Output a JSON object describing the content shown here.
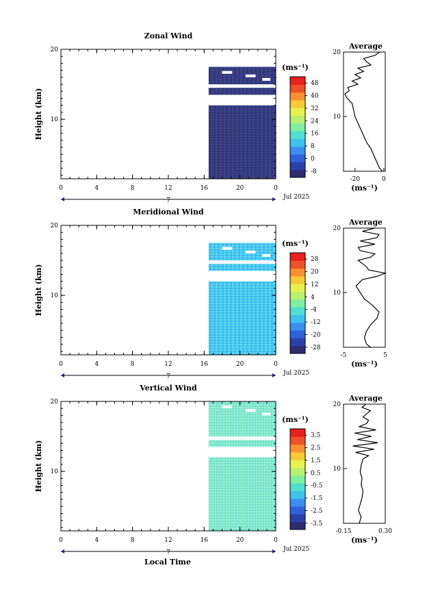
{
  "figure": {
    "xlabel": "Local Time",
    "date_label": "Jul 2025",
    "day_marker": "7",
    "unit_label": "(ms⁻¹)",
    "average_title": "Average"
  },
  "chart_data": [
    {
      "type": "heatmap",
      "title": "Zonal Wind",
      "xlabel": "Local Time",
      "ylabel": "Height (km)",
      "x_ticks": [
        "0",
        "4",
        "8",
        "12",
        "16",
        "20",
        "0"
      ],
      "xlim": [
        0,
        24
      ],
      "y_ticks": [
        "10",
        "20"
      ],
      "ylim": [
        1.5,
        20
      ],
      "data_x_range": [
        16.5,
        24
      ],
      "data_height_bands_km": [
        [
          1.5,
          12
        ],
        [
          13.5,
          14.5
        ],
        [
          15,
          17.5
        ]
      ],
      "colorbar": {
        "label": "(ms⁻¹)",
        "ticks": [
          "48",
          "40",
          "32",
          "24",
          "16",
          "8",
          "0",
          "-8"
        ],
        "range": [
          -12,
          52
        ]
      },
      "average": {
        "title": "Average",
        "xlabel": "(ms⁻¹)",
        "x_ticks": [
          "-20",
          "0"
        ],
        "xlim": [
          -28,
          1
        ],
        "y_ticks": [
          "10",
          "20"
        ],
        "height_km": [
          1.5,
          2,
          3,
          4,
          5,
          6,
          7,
          8,
          9,
          10,
          11,
          12,
          12.5,
          13,
          13.5,
          14,
          14.5,
          15,
          15.5,
          16,
          16.5,
          17,
          17.5,
          18,
          18.5,
          19,
          19.5,
          20
        ],
        "values": [
          -1,
          -3,
          -5,
          -7,
          -9,
          -12,
          -14,
          -16,
          -18,
          -20,
          -21,
          -22,
          -24,
          -26,
          -27,
          -24,
          -25,
          -18,
          -22,
          -16,
          -20,
          -14,
          -18,
          -9,
          -12,
          -14,
          -6,
          -3
        ]
      }
    },
    {
      "type": "heatmap",
      "title": "Meridional Wind",
      "xlabel": "Local Time",
      "ylabel": "Height (km)",
      "x_ticks": [
        "0",
        "4",
        "8",
        "12",
        "16",
        "20",
        "0"
      ],
      "xlim": [
        0,
        24
      ],
      "y_ticks": [
        "10",
        "20"
      ],
      "ylim": [
        1.5,
        20
      ],
      "data_x_range": [
        16.5,
        24
      ],
      "data_height_bands_km": [
        [
          1.5,
          12
        ],
        [
          13.5,
          14.5
        ],
        [
          15,
          17.5
        ]
      ],
      "colorbar": {
        "label": "(ms⁻¹)",
        "ticks": [
          "28",
          "20",
          "12",
          "4",
          "-4",
          "-12",
          "-20",
          "-28"
        ],
        "range": [
          -32,
          32
        ]
      },
      "average": {
        "title": "Average",
        "xlabel": "(ms⁻¹)",
        "x_ticks": [
          "-5",
          "5"
        ],
        "xlim": [
          -5,
          5
        ],
        "y_ticks": [
          "10",
          "20"
        ],
        "height_km": [
          1.5,
          2,
          3,
          4,
          5,
          6,
          7,
          8,
          9,
          10,
          11,
          12,
          12.5,
          13,
          13.5,
          14,
          14.5,
          15,
          15.5,
          16,
          16.5,
          17,
          17.5,
          18,
          18.5,
          19,
          19.5,
          20
        ],
        "values": [
          1.5,
          0.5,
          0,
          0.5,
          1.5,
          3,
          3.5,
          2,
          0,
          -1,
          -2,
          -0.5,
          3,
          5,
          1,
          0.5,
          -0.5,
          -1.5,
          1.5,
          2.5,
          -1,
          -1.5,
          2.5,
          -1,
          3,
          3.5,
          -0.5,
          2.5
        ]
      }
    },
    {
      "type": "heatmap",
      "title": "Vertical Wind",
      "xlabel": "Local Time",
      "ylabel": "Height (km)",
      "x_ticks": [
        "0",
        "4",
        "8",
        "12",
        "16",
        "20",
        "0"
      ],
      "xlim": [
        0,
        24
      ],
      "y_ticks": [
        "10",
        "20"
      ],
      "ylim": [
        1.5,
        20
      ],
      "data_x_range": [
        16.5,
        24
      ],
      "data_height_bands_km": [
        [
          1.5,
          12
        ],
        [
          13.5,
          14.5
        ],
        [
          15,
          20
        ]
      ],
      "colorbar": {
        "label": "(ms⁻¹)",
        "ticks": [
          "3.5",
          "2.5",
          "1.5",
          "0.5",
          "-0.5",
          "-1.5",
          "-2.5",
          "-3.5"
        ],
        "range": [
          -4,
          4
        ]
      },
      "average": {
        "title": "Average",
        "xlabel": "(ms⁻¹)",
        "x_ticks": [
          "-0.15",
          "0.30"
        ],
        "xlim": [
          -0.15,
          0.3
        ],
        "y_ticks": [
          "10",
          "20"
        ],
        "height_km": [
          1.5,
          2.5,
          3.5,
          4.5,
          5.5,
          6.5,
          7.5,
          8.5,
          9.5,
          10.5,
          11.5,
          12,
          12.5,
          13,
          13.5,
          14,
          14.5,
          15,
          15.5,
          16,
          16.5,
          17,
          17.5,
          18,
          18.5,
          19,
          19.5,
          20
        ],
        "values": [
          0.02,
          0.04,
          0.01,
          0.03,
          0.05,
          0.06,
          0.04,
          0.05,
          0.03,
          0.04,
          0.06,
          0.12,
          -0.02,
          0.18,
          -0.05,
          0.22,
          0.0,
          0.15,
          -0.03,
          0.2,
          0.02,
          0.1,
          0.12,
          0.06,
          0.1,
          0.14,
          0.05,
          0.09
        ]
      }
    }
  ],
  "colors": {
    "colormap": [
      "#2b2d6e",
      "#2b3fa8",
      "#2f62d8",
      "#3b8ff0",
      "#3fc2f0",
      "#4fe0d0",
      "#7ef0a0",
      "#b8f070",
      "#e8f050",
      "#f8c838",
      "#f89030",
      "#f05028",
      "#e82020"
    ],
    "zonal_data": "#33397a",
    "meridional_data": "#47c8ec",
    "vertical_data": "#7fe8c8"
  }
}
